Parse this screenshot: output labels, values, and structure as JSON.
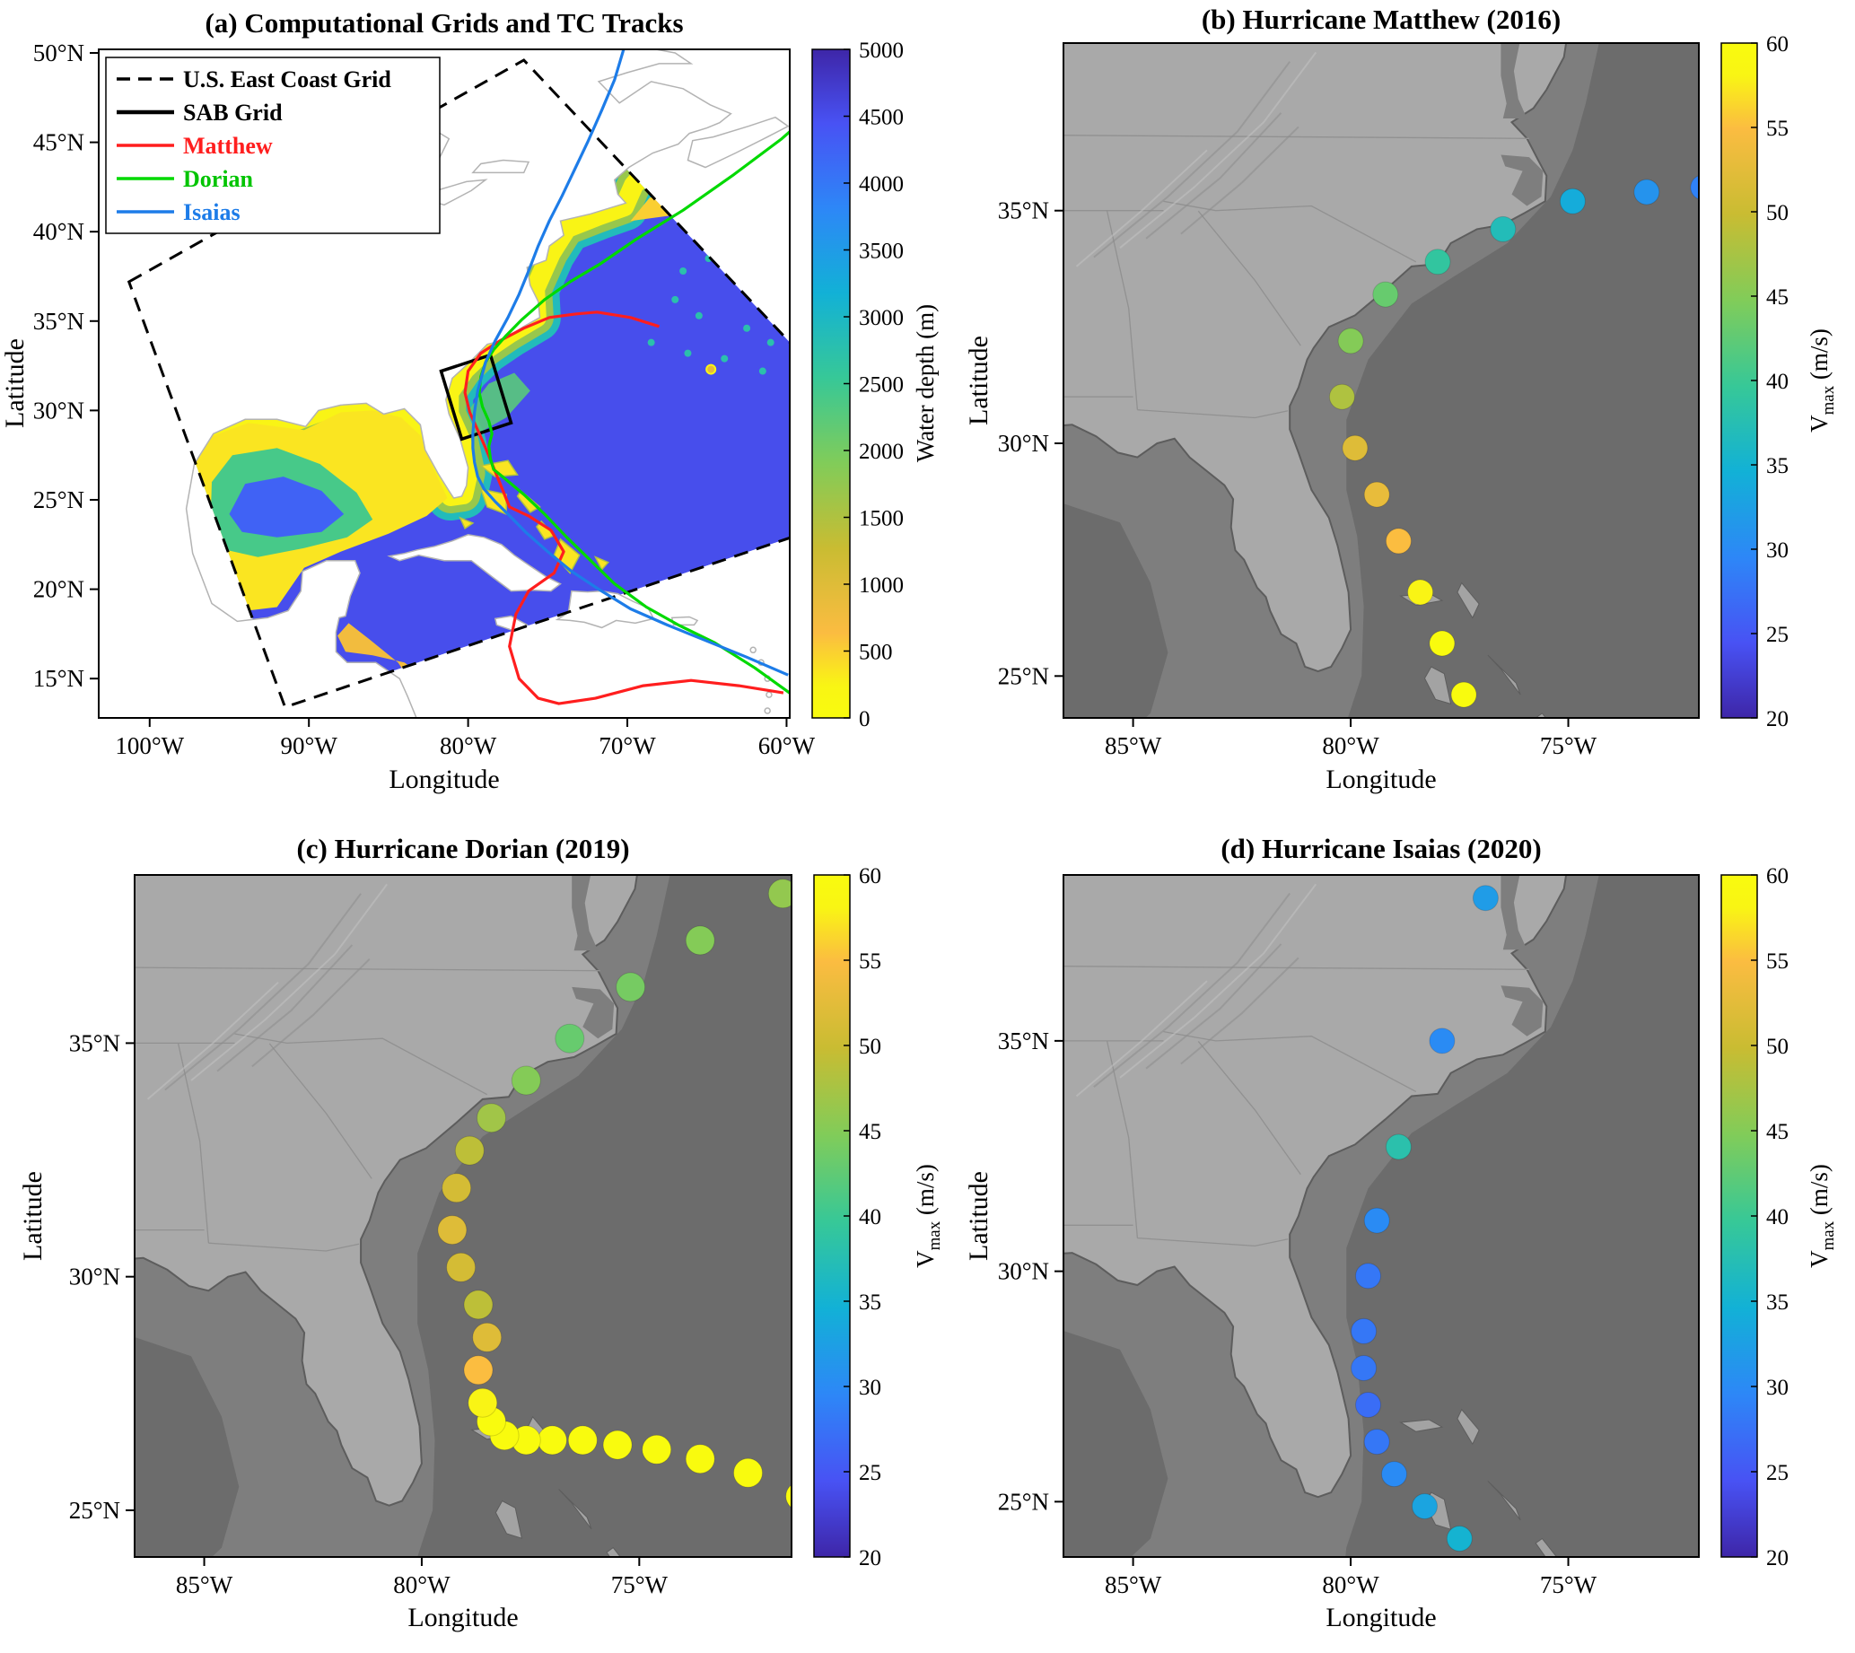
{
  "figure": {
    "background": "#ffffff",
    "palette": {
      "ocean_gray": "#7e7e7e",
      "deep_ocean_gray": "#6c6c6c",
      "land_gray": "#a9a9a9",
      "island_gray": "#a3a3a3",
      "coastline": "#5d5d5d",
      "state_line": "#919191",
      "coastline_light": "#b3b3b3"
    }
  },
  "colormap": [
    [
      0,
      "#3e26a8"
    ],
    [
      0.111,
      "#4852f4"
    ],
    [
      0.238,
      "#2d87f7"
    ],
    [
      0.365,
      "#12b1d6"
    ],
    [
      0.492,
      "#37c897"
    ],
    [
      0.619,
      "#81cc59"
    ],
    [
      0.746,
      "#c9bc32"
    ],
    [
      0.873,
      "#fbbc41"
    ],
    [
      0.952,
      "#f9f514"
    ],
    [
      1,
      "#f9fb0e"
    ]
  ],
  "chart_data": [
    {
      "type": "map",
      "panel": "a",
      "title": "(a) Computational Grids and TC Tracks",
      "xlabel": "Longitude",
      "ylabel": "Latitude",
      "xlim": [
        -103.2,
        -59.8
      ],
      "ylim": [
        12.8,
        50.2
      ],
      "xticks": [
        -100,
        -90,
        -80,
        -70,
        -60
      ],
      "xtick_labels": [
        "100°W",
        "90°W",
        "80°W",
        "70°W",
        "60°W"
      ],
      "yticks": [
        15,
        20,
        25,
        30,
        35,
        40,
        45,
        50
      ],
      "ytick_labels": [
        "15°N",
        "20°N",
        "25°N",
        "30°N",
        "35°N",
        "40°N",
        "45°N",
        "50°N"
      ],
      "colorbar": {
        "label": "Water depth (m)",
        "min": 0,
        "max": 5000,
        "reverse": true,
        "ticks": [
          0,
          500,
          1000,
          1500,
          2000,
          2500,
          3000,
          3500,
          4000,
          4500,
          5000
        ],
        "tick_labels": [
          "0",
          "500",
          "1000",
          "1500",
          "2000",
          "2500",
          "3000",
          "3500",
          "4000",
          "4500",
          "5000"
        ]
      },
      "grids": {
        "east_coast": {
          "label": "U.S. East Coast Grid",
          "corners": [
            [
              -101.3,
              37.2
            ],
            [
              -76.5,
              49.6
            ],
            [
              -51.0,
              25.5
            ],
            [
              -91.5,
              13.4
            ]
          ]
        },
        "sab": {
          "label": "SAB Grid",
          "corners": [
            [
              -81.7,
              32.2
            ],
            [
              -78.6,
              33.1
            ],
            [
              -77.3,
              29.3
            ],
            [
              -80.4,
              28.4
            ]
          ]
        }
      },
      "legend": [
        {
          "label": "U.S. East Coast Grid",
          "color": "#000000",
          "text_color": "#000000",
          "dash": true,
          "lw": 3.5
        },
        {
          "label": "SAB Grid",
          "color": "#000000",
          "text_color": "#000000",
          "dash": false,
          "lw": 4.5
        },
        {
          "label": "Matthew",
          "color": "#ff1e1e",
          "text_color": "#ff1e1e",
          "dash": false,
          "lw": 3.5
        },
        {
          "label": "Dorian",
          "color": "#00d900",
          "text_color": "#00c400",
          "dash": false,
          "lw": 3.5
        },
        {
          "label": "Isaias",
          "color": "#1d7ce8",
          "text_color": "#1d7ce8",
          "dash": false,
          "lw": 3.5
        }
      ],
      "tracks": [
        {
          "name": "Matthew",
          "color": "#ff1e1e",
          "points": [
            [
              -60.2,
              14.2
            ],
            [
              -63.0,
              14.6
            ],
            [
              -66.0,
              14.9
            ],
            [
              -69.0,
              14.6
            ],
            [
              -72.0,
              13.9
            ],
            [
              -74.3,
              13.6
            ],
            [
              -75.6,
              13.9
            ],
            [
              -76.8,
              15.0
            ],
            [
              -77.4,
              16.8
            ],
            [
              -77.0,
              18.6
            ],
            [
              -76.2,
              19.9
            ],
            [
              -74.6,
              20.9
            ],
            [
              -74.0,
              22.1
            ],
            [
              -74.8,
              23.3
            ],
            [
              -76.2,
              24.1
            ],
            [
              -77.4,
              24.6
            ],
            [
              -77.9,
              25.7
            ],
            [
              -78.4,
              26.8
            ],
            [
              -78.9,
              27.9
            ],
            [
              -79.4,
              28.9
            ],
            [
              -79.9,
              29.9
            ],
            [
              -80.2,
              31.0
            ],
            [
              -80.0,
              32.2
            ],
            [
              -79.2,
              33.2
            ],
            [
              -78.0,
              33.9
            ],
            [
              -76.5,
              34.6
            ],
            [
              -74.9,
              35.2
            ],
            [
              -73.2,
              35.4
            ],
            [
              -71.9,
              35.5
            ],
            [
              -69.8,
              35.2
            ],
            [
              -68.0,
              34.7
            ]
          ]
        },
        {
          "name": "Dorian",
          "color": "#00d900",
          "points": [
            [
              -54.5,
              11.5
            ],
            [
              -57.0,
              12.8
            ],
            [
              -59.5,
              14.0
            ],
            [
              -62.0,
              15.6
            ],
            [
              -64.5,
              17.0
            ],
            [
              -66.8,
              18.0
            ],
            [
              -68.8,
              19.0
            ],
            [
              -70.8,
              20.3
            ],
            [
              -72.3,
              21.6
            ],
            [
              -73.8,
              22.9
            ],
            [
              -75.2,
              24.2
            ],
            [
              -76.5,
              25.3
            ],
            [
              -77.7,
              26.2
            ],
            [
              -78.4,
              26.7
            ],
            [
              -78.6,
              27.3
            ],
            [
              -78.7,
              28.0
            ],
            [
              -78.5,
              28.7
            ],
            [
              -78.7,
              29.4
            ],
            [
              -79.1,
              30.2
            ],
            [
              -79.3,
              31.0
            ],
            [
              -79.2,
              31.9
            ],
            [
              -78.9,
              32.7
            ],
            [
              -78.4,
              33.4
            ],
            [
              -77.6,
              34.2
            ],
            [
              -76.6,
              35.1
            ],
            [
              -75.2,
              36.2
            ],
            [
              -73.6,
              37.2
            ],
            [
              -71.7,
              38.2
            ],
            [
              -69.4,
              39.6
            ],
            [
              -66.5,
              41.2
            ],
            [
              -63.3,
              43.2
            ],
            [
              -60.3,
              45.2
            ],
            [
              -58.0,
              47.0
            ],
            [
              -56.2,
              48.8
            ],
            [
              -55.0,
              50.3
            ]
          ]
        },
        {
          "name": "Isaias",
          "color": "#1d7ce8",
          "points": [
            [
              -59.9,
              15.2
            ],
            [
              -62.5,
              16.2
            ],
            [
              -65.0,
              17.1
            ],
            [
              -67.5,
              18.0
            ],
            [
              -69.8,
              18.9
            ],
            [
              -71.8,
              20.0
            ],
            [
              -73.5,
              21.0
            ],
            [
              -75.0,
              22.1
            ],
            [
              -76.4,
              23.2
            ],
            [
              -77.5,
              24.2
            ],
            [
              -78.3,
              24.9
            ],
            [
              -79.0,
              25.6
            ],
            [
              -79.4,
              26.3
            ],
            [
              -79.6,
              27.1
            ],
            [
              -79.7,
              27.9
            ],
            [
              -79.7,
              28.7
            ],
            [
              -79.6,
              29.9
            ],
            [
              -79.4,
              31.1
            ],
            [
              -78.9,
              32.7
            ],
            [
              -78.3,
              33.9
            ],
            [
              -77.5,
              35.2
            ],
            [
              -76.8,
              36.5
            ],
            [
              -76.2,
              37.8
            ],
            [
              -75.6,
              39.2
            ],
            [
              -74.9,
              40.6
            ],
            [
              -74.1,
              42.0
            ],
            [
              -73.3,
              43.5
            ],
            [
              -72.5,
              45.0
            ],
            [
              -71.6,
              46.8
            ],
            [
              -70.8,
              48.5
            ],
            [
              -70.2,
              50.3
            ]
          ]
        }
      ]
    },
    {
      "type": "scatter-map",
      "panel": "b",
      "title": "(b) Hurricane Matthew (2016)",
      "xlabel": "Longitude",
      "ylabel": "Latitude",
      "xlim": [
        -86.6,
        -72.0
      ],
      "ylim": [
        24.1,
        38.6
      ],
      "xticks": [
        -85,
        -80,
        -75
      ],
      "xtick_labels": [
        "85°W",
        "80°W",
        "75°W"
      ],
      "yticks": [
        25,
        30,
        35
      ],
      "ytick_labels": [
        "25°N",
        "30°N",
        "35°N"
      ],
      "dot_radius": 14,
      "colorbar": {
        "label_main": "V",
        "label_sub": "max",
        "label_unit": " (m/s)",
        "min": 20,
        "max": 60,
        "reverse": false,
        "ticks": [
          20,
          25,
          30,
          35,
          40,
          45,
          50,
          55,
          60
        ],
        "tick_labels": [
          "20",
          "25",
          "30",
          "35",
          "40",
          "45",
          "50",
          "55",
          "60"
        ]
      },
      "track_points": {
        "lon": [
          -77.4,
          -77.9,
          -78.4,
          -78.9,
          -79.4,
          -79.9,
          -80.2,
          -80.0,
          -79.2,
          -78.0,
          -76.5,
          -74.9,
          -73.2,
          -71.9
        ],
        "lat": [
          24.6,
          25.7,
          26.8,
          27.9,
          28.9,
          29.9,
          31.0,
          32.2,
          33.2,
          33.9,
          34.6,
          35.2,
          35.4,
          35.5
        ],
        "vmax": [
          60,
          60,
          58,
          55,
          53,
          52,
          48,
          45,
          43,
          39,
          37,
          34,
          31,
          29
        ]
      }
    },
    {
      "type": "scatter-map",
      "panel": "c",
      "title": "(c) Hurricane Dorian (2019)",
      "xlabel": "Longitude",
      "ylabel": "Latitude",
      "xlim": [
        -86.6,
        -71.5
      ],
      "ylim": [
        24.0,
        38.6
      ],
      "xticks": [
        -85,
        -80,
        -75
      ],
      "xtick_labels": [
        "85°W",
        "80°W",
        "75°W"
      ],
      "yticks": [
        25,
        30,
        35
      ],
      "ytick_labels": [
        "25°N",
        "30°N",
        "35°N"
      ],
      "dot_radius": 16,
      "colorbar": {
        "label_main": "V",
        "label_sub": "max",
        "label_unit": " (m/s)",
        "min": 20,
        "max": 60,
        "reverse": false,
        "ticks": [
          20,
          25,
          30,
          35,
          40,
          45,
          50,
          55,
          60
        ],
        "tick_labels": [
          "20",
          "25",
          "30",
          "35",
          "40",
          "45",
          "50",
          "55",
          "60"
        ]
      },
      "track_points": {
        "lon": [
          -71.3,
          -72.5,
          -73.6,
          -74.6,
          -75.5,
          -76.3,
          -77.0,
          -77.6,
          -78.1,
          -78.4,
          -78.6,
          -78.7,
          -78.5,
          -78.7,
          -79.1,
          -79.3,
          -79.2,
          -78.9,
          -78.4,
          -77.6,
          -76.6,
          -75.2,
          -73.6,
          -71.7
        ],
        "lat": [
          25.3,
          25.8,
          26.1,
          26.3,
          26.4,
          26.5,
          26.5,
          26.5,
          26.6,
          26.9,
          27.3,
          28.0,
          28.7,
          29.4,
          30.2,
          31.0,
          31.9,
          32.7,
          33.4,
          34.2,
          35.1,
          36.2,
          37.2,
          38.2
        ],
        "vmax": [
          60,
          60,
          60,
          60,
          60,
          60,
          60,
          60,
          60,
          60,
          58,
          55,
          52,
          49,
          51,
          52,
          51,
          49,
          47,
          45,
          43,
          44,
          45,
          46
        ]
      }
    },
    {
      "type": "scatter-map",
      "panel": "d",
      "title": "(d) Hurricane Isaias (2020)",
      "xlabel": "Longitude",
      "ylabel": "Latitude",
      "xlim": [
        -86.6,
        -72.0
      ],
      "ylim": [
        23.8,
        38.6
      ],
      "xticks": [
        -85,
        -80,
        -75
      ],
      "xtick_labels": [
        "85°W",
        "80°W",
        "75°W"
      ],
      "yticks": [
        25,
        30,
        35
      ],
      "ytick_labels": [
        "25°N",
        "30°N",
        "35°N"
      ],
      "dot_radius": 14,
      "colorbar": {
        "label_main": "V",
        "label_sub": "max",
        "label_unit": " (m/s)",
        "min": 20,
        "max": 60,
        "reverse": false,
        "ticks": [
          20,
          25,
          30,
          35,
          40,
          45,
          50,
          55,
          60
        ],
        "tick_labels": [
          "20",
          "25",
          "30",
          "35",
          "40",
          "45",
          "50",
          "55",
          "60"
        ]
      },
      "track_points": {
        "lon": [
          -77.5,
          -78.3,
          -79.0,
          -79.4,
          -79.6,
          -79.7,
          -79.7,
          -79.6,
          -79.4,
          -78.9,
          -77.9,
          -76.9
        ],
        "lat": [
          24.2,
          24.9,
          25.6,
          26.3,
          27.1,
          27.9,
          28.7,
          29.9,
          31.1,
          32.7,
          35.0,
          38.1
        ],
        "vmax": [
          35,
          33,
          30,
          28,
          27,
          28,
          28,
          28,
          30,
          38,
          30,
          32
        ]
      }
    }
  ]
}
